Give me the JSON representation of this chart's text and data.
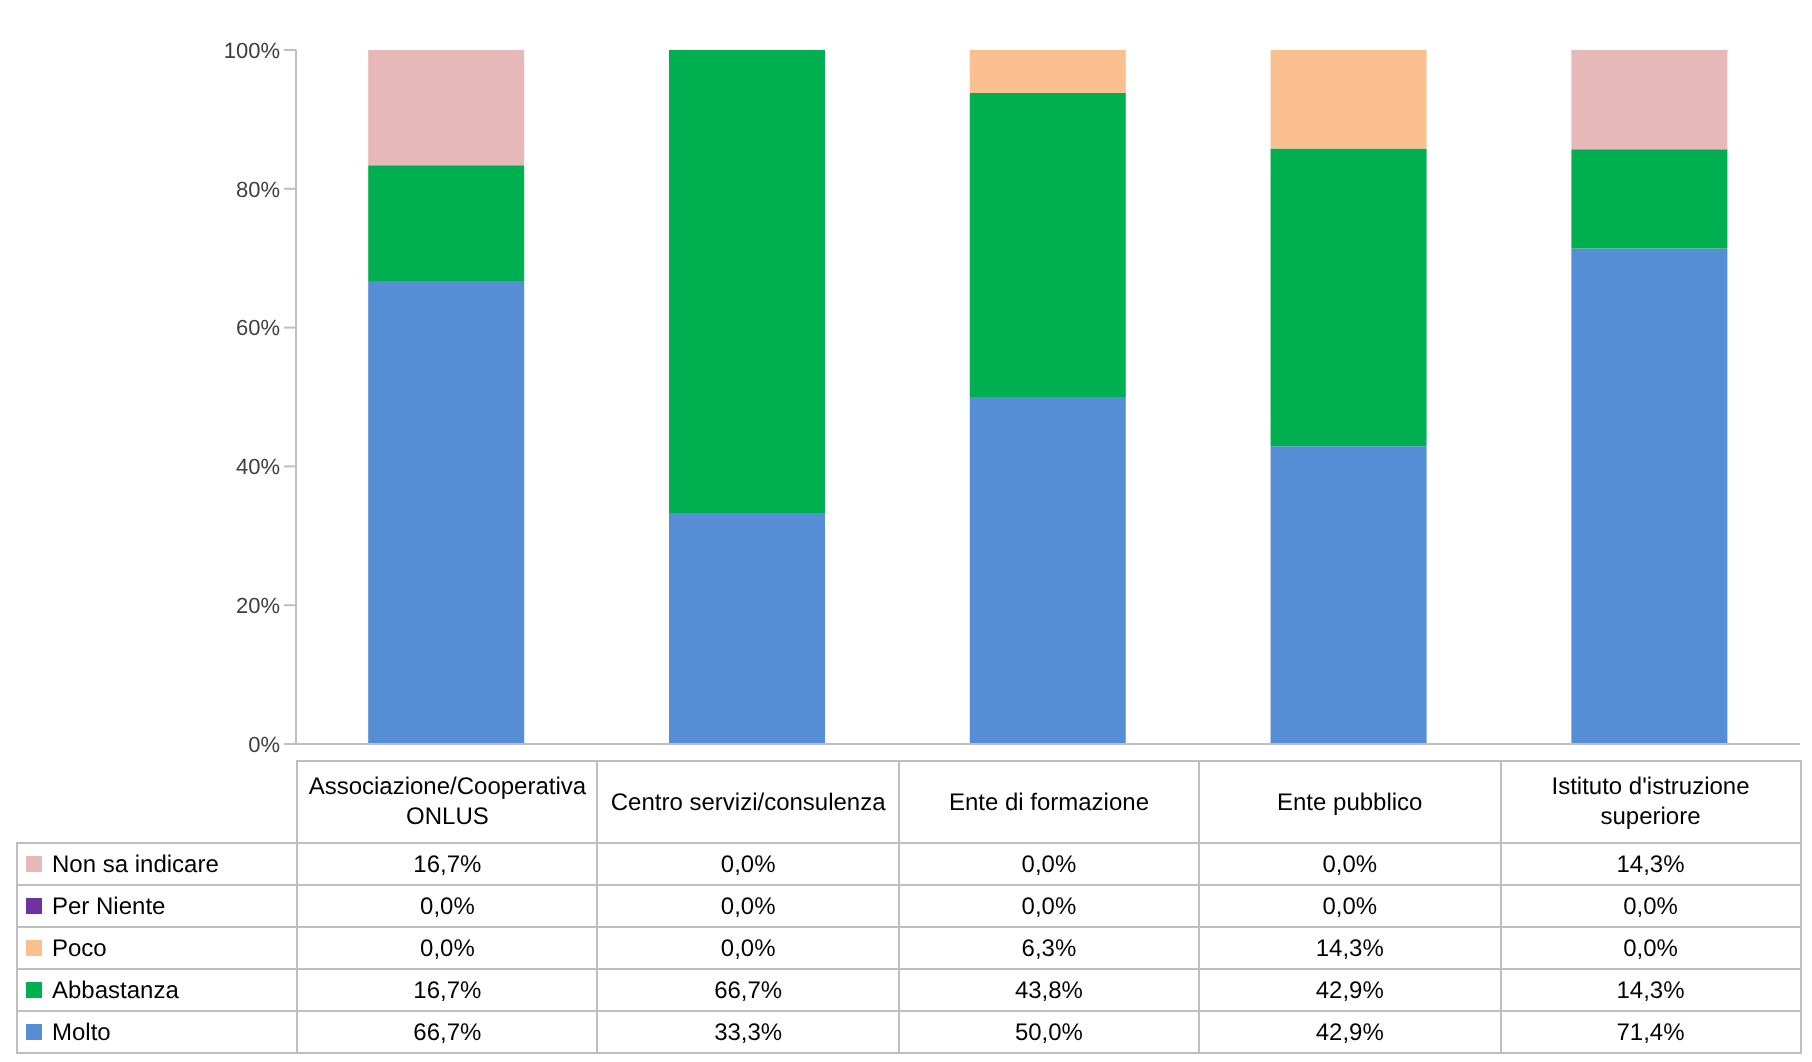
{
  "chart_data": {
    "type": "bar",
    "stacked": true,
    "categories": [
      "Associazione/Cooperativa ONLUS",
      "Centro servizi/consulenza",
      "Ente di formazione",
      "Ente pubblico",
      "Istituto d'istruzione superiore"
    ],
    "series": [
      {
        "name": "Molto",
        "color": "#558ed5",
        "values": [
          66.7,
          33.3,
          50.0,
          42.9,
          71.4
        ],
        "value_labels": [
          "66,7%",
          "33,3%",
          "50,0%",
          "42,9%",
          "71,4%"
        ]
      },
      {
        "name": "Abbastanza",
        "color": "#00b050",
        "values": [
          16.7,
          66.7,
          43.8,
          42.9,
          14.3
        ],
        "value_labels": [
          "16,7%",
          "66,7%",
          "43,8%",
          "42,9%",
          "14,3%"
        ]
      },
      {
        "name": "Poco",
        "color": "#fac090",
        "values": [
          0.0,
          0.0,
          6.3,
          14.3,
          0.0
        ],
        "value_labels": [
          "0,0%",
          "0,0%",
          "6,3%",
          "14,3%",
          "0,0%"
        ]
      },
      {
        "name": "Per Niente",
        "color": "#7030a0",
        "values": [
          0.0,
          0.0,
          0.0,
          0.0,
          0.0
        ],
        "value_labels": [
          "0,0%",
          "0,0%",
          "0,0%",
          "0,0%",
          "0,0%"
        ]
      },
      {
        "name": "Non sa indicare",
        "color": "#e6b9b8",
        "values": [
          16.7,
          0.0,
          0.0,
          0.0,
          14.3
        ],
        "value_labels": [
          "16,7%",
          "0,0%",
          "0,0%",
          "0,0%",
          "14,3%"
        ]
      }
    ],
    "ylim": [
      0,
      100
    ],
    "yticks": [
      {
        "value": 0,
        "label": "0%"
      },
      {
        "value": 20,
        "label": "20%"
      },
      {
        "value": 40,
        "label": "40%"
      },
      {
        "value": 60,
        "label": "60%"
      },
      {
        "value": 80,
        "label": "80%"
      },
      {
        "value": 100,
        "label": "100%"
      }
    ],
    "grid": false,
    "legend": "bottom"
  }
}
